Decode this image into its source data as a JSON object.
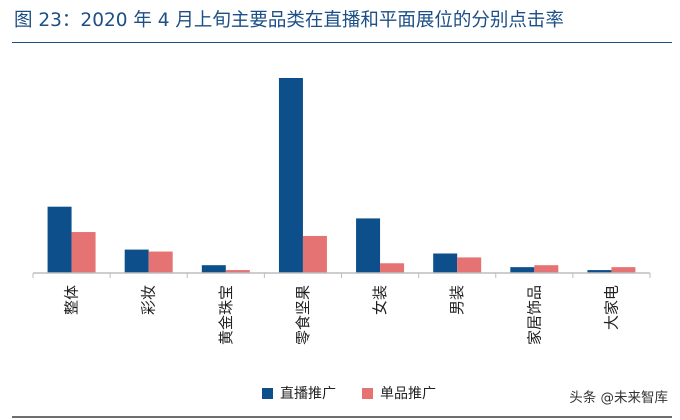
{
  "title": "图 23：2020 年 4 月上旬主要品类在直播和平面展位的分别点击率",
  "watermark": "头条 @未来智库",
  "colors": {
    "live": "#0d4f8a",
    "print": "#e57373",
    "title": "#1b4f86"
  },
  "chart_data": {
    "type": "bar",
    "title": "",
    "xlabel": "",
    "ylabel": "",
    "ylim": [
      0,
      100
    ],
    "grid": false,
    "legend": "bottom-center",
    "categories": [
      "整体",
      "彩妆",
      "黄金珠宝",
      "零食坚果",
      "女装",
      "男装",
      "家居饰品",
      "大家电"
    ],
    "series": [
      {
        "name": "直播推广",
        "values": [
          34,
          12,
          4,
          100,
          28,
          10,
          3,
          1.5
        ]
      },
      {
        "name": "单品推广",
        "values": [
          21,
          11,
          1.5,
          19,
          5,
          8,
          4,
          3
        ]
      }
    ]
  }
}
